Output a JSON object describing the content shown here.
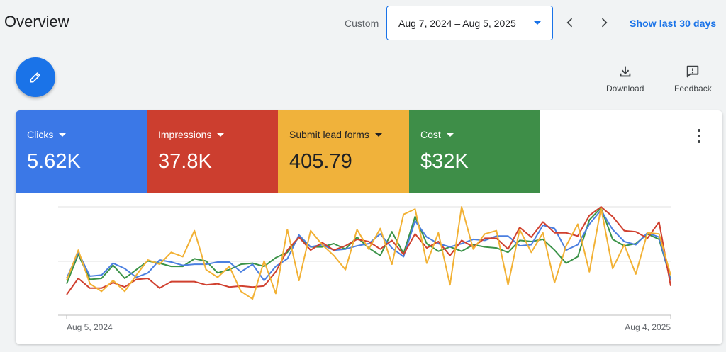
{
  "header": {
    "title": "Overview",
    "custom_label": "Custom",
    "date_range": "Aug 7, 2024 – Aug 5, 2025",
    "show_last": "Show last 30 days"
  },
  "actions": {
    "download": "Download",
    "feedback": "Feedback"
  },
  "metrics": [
    {
      "label": "Clicks",
      "value": "5.62K",
      "color": "#3b78e7"
    },
    {
      "label": "Impressions",
      "value": "37.8K",
      "color": "#cc3e2f"
    },
    {
      "label": "Submit lead forms",
      "value": "405.79",
      "color": "#f0b23b"
    },
    {
      "label": "Cost",
      "value": "$32K",
      "color": "#3e8e48"
    }
  ],
  "chart_data": {
    "type": "line",
    "x_start_label": "Aug 5, 2024",
    "x_end_label": "Aug 4, 2025",
    "grid": true,
    "series": [
      {
        "name": "Clicks",
        "color": "#4a7fe0",
        "values": [
          0.34,
          0.58,
          0.36,
          0.37,
          0.48,
          0.43,
          0.35,
          0.39,
          0.51,
          0.49,
          0.46,
          0.47,
          0.47,
          0.49,
          0.49,
          0.4,
          0.47,
          0.32,
          0.45,
          0.52,
          0.74,
          0.63,
          0.65,
          0.6,
          0.61,
          0.64,
          0.66,
          0.75,
          0.62,
          0.54,
          0.87,
          0.72,
          0.66,
          0.63,
          0.66,
          0.7,
          0.69,
          0.73,
          0.73,
          0.64,
          0.65,
          0.83,
          0.8,
          0.6,
          0.65,
          0.84,
          0.97,
          0.79,
          0.68,
          0.65,
          0.76,
          0.72,
          0.32
        ]
      },
      {
        "name": "Impressions",
        "color": "#d0402f",
        "values": [
          0.19,
          0.34,
          0.25,
          0.25,
          0.3,
          0.26,
          0.33,
          0.34,
          0.25,
          0.31,
          0.31,
          0.31,
          0.28,
          0.29,
          0.26,
          0.27,
          0.26,
          0.27,
          0.4,
          0.6,
          0.72,
          0.6,
          0.67,
          0.6,
          0.64,
          0.7,
          0.68,
          0.61,
          0.69,
          0.56,
          0.75,
          0.62,
          0.68,
          0.55,
          0.69,
          0.63,
          0.71,
          0.71,
          0.61,
          0.81,
          0.72,
          0.86,
          0.76,
          0.76,
          0.73,
          0.92,
          1.0,
          0.91,
          0.78,
          0.77,
          0.71,
          0.86,
          0.27
        ]
      },
      {
        "name": "Submit lead forms",
        "color": "#f2b134",
        "values": [
          0.32,
          0.6,
          0.29,
          0.22,
          0.32,
          0.22,
          0.37,
          0.51,
          0.47,
          0.58,
          0.54,
          0.78,
          0.42,
          0.35,
          0.45,
          0.22,
          0.15,
          0.5,
          0.2,
          0.79,
          0.32,
          0.78,
          0.65,
          0.55,
          0.42,
          0.79,
          0.61,
          0.8,
          0.47,
          0.93,
          0.98,
          0.48,
          0.76,
          0.28,
          1.0,
          0.61,
          0.75,
          0.78,
          0.28,
          0.79,
          0.58,
          0.76,
          0.3,
          0.64,
          0.84,
          0.4,
          0.99,
          0.43,
          0.65,
          0.38,
          0.76,
          0.75,
          0.37
        ]
      },
      {
        "name": "Cost",
        "color": "#3b9348",
        "values": [
          0.29,
          0.56,
          0.33,
          0.34,
          0.46,
          0.34,
          0.42,
          0.5,
          0.48,
          0.45,
          0.45,
          0.52,
          0.5,
          0.39,
          0.42,
          0.47,
          0.48,
          0.45,
          0.53,
          0.58,
          0.72,
          0.63,
          0.63,
          0.66,
          0.61,
          0.72,
          0.62,
          0.55,
          0.77,
          0.57,
          0.91,
          0.66,
          0.59,
          0.63,
          0.59,
          0.65,
          0.63,
          0.62,
          0.58,
          0.69,
          0.68,
          0.7,
          0.6,
          0.48,
          0.54,
          0.88,
          0.99,
          0.7,
          0.64,
          0.66,
          0.75,
          0.7,
          0.33
        ]
      }
    ]
  }
}
